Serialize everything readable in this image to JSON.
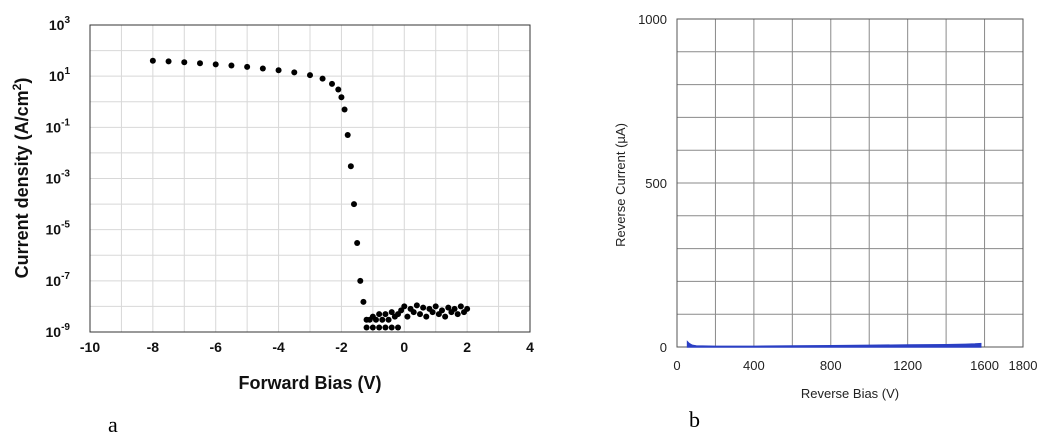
{
  "chart_data": [
    {
      "type": "scatter",
      "panel_label": "a",
      "xlabel": "Forward Bias (V)",
      "ylabel": "Current density (A/cm2)",
      "ylabel_parts": [
        "Current density (A/cm",
        "2",
        ")"
      ],
      "xlim": [
        -10,
        4
      ],
      "ylim": [
        1e-09,
        1000
      ],
      "yscale": "log",
      "grid": true,
      "x_ticks": [
        "-10",
        "-8",
        "-6",
        "-4",
        "-2",
        "0",
        "2",
        "4"
      ],
      "y_ticks": [
        {
          "value": 1000,
          "base": "10",
          "exp": "3"
        },
        {
          "value": 10,
          "base": "10",
          "exp": "1"
        },
        {
          "value": 0.1,
          "base": "10",
          "exp": "-1"
        },
        {
          "value": 0.001,
          "base": "10",
          "exp": "-3"
        },
        {
          "value": 1e-05,
          "base": "10",
          "exp": "-5"
        },
        {
          "value": 1e-07,
          "base": "10",
          "exp": "-7"
        },
        {
          "value": 1e-09,
          "base": "10",
          "exp": "-9"
        }
      ],
      "series": [
        {
          "color": "#000000",
          "points": [
            [
              -8.0,
              40
            ],
            [
              -7.5,
              38
            ],
            [
              -7.0,
              35
            ],
            [
              -6.5,
              32
            ],
            [
              -6.0,
              29
            ],
            [
              -5.5,
              26
            ],
            [
              -5.0,
              23
            ],
            [
              -4.5,
              20
            ],
            [
              -4.0,
              17
            ],
            [
              -3.5,
              14
            ],
            [
              -3.0,
              11
            ],
            [
              -2.6,
              8
            ],
            [
              -2.3,
              5
            ],
            [
              -2.1,
              3
            ],
            [
              -2.0,
              1.5
            ],
            [
              -1.9,
              0.5
            ],
            [
              -1.8,
              0.05
            ],
            [
              -1.7,
              0.003
            ],
            [
              -1.6,
              0.0001
            ],
            [
              -1.5,
              3e-06
            ],
            [
              -1.4,
              1e-07
            ],
            [
              -1.3,
              1.5e-08
            ],
            [
              -1.2,
              3e-09
            ],
            [
              -1.1,
              3e-09
            ],
            [
              -1.0,
              4e-09
            ],
            [
              -0.9,
              3e-09
            ],
            [
              -0.8,
              5e-09
            ],
            [
              -0.7,
              3e-09
            ],
            [
              -0.6,
              5e-09
            ],
            [
              -0.5,
              3e-09
            ],
            [
              -0.4,
              6e-09
            ],
            [
              -0.3,
              4e-09
            ],
            [
              -0.2,
              5e-09
            ],
            [
              -0.1,
              7e-09
            ],
            [
              0.0,
              1e-08
            ],
            [
              0.1,
              4e-09
            ],
            [
              0.2,
              8e-09
            ],
            [
              0.3,
              6e-09
            ],
            [
              0.4,
              1.1e-08
            ],
            [
              0.5,
              5e-09
            ],
            [
              0.6,
              9e-09
            ],
            [
              0.7,
              4e-09
            ],
            [
              0.8,
              8e-09
            ],
            [
              0.9,
              6e-09
            ],
            [
              1.0,
              1e-08
            ],
            [
              1.1,
              5e-09
            ],
            [
              1.2,
              7e-09
            ],
            [
              1.3,
              4e-09
            ],
            [
              1.4,
              9e-09
            ],
            [
              1.5,
              6e-09
            ],
            [
              1.6,
              8e-09
            ],
            [
              1.7,
              5e-09
            ],
            [
              1.8,
              1e-08
            ],
            [
              1.9,
              6e-09
            ],
            [
              2.0,
              8e-09
            ],
            [
              -1.2,
              1.5e-09
            ],
            [
              -1.0,
              1.5e-09
            ],
            [
              -0.8,
              1.5e-09
            ],
            [
              -0.6,
              1.5e-09
            ],
            [
              -0.4,
              1.5e-09
            ],
            [
              -0.2,
              1.5e-09
            ]
          ]
        }
      ]
    },
    {
      "type": "area",
      "panel_label": "b",
      "xlabel": "Reverse Bias (V)",
      "ylabel": "Reverse Current (µA)",
      "xlim": [
        0,
        1800
      ],
      "ylim": [
        0,
        1000
      ],
      "grid": true,
      "x_ticks": [
        "0",
        "400",
        "800",
        "1200",
        "1600",
        "1800"
      ],
      "x_tick_values": [
        0,
        400,
        800,
        1200,
        1600,
        1800
      ],
      "y_ticks": [
        "0",
        "500",
        "1000"
      ],
      "y_tick_values": [
        0,
        500,
        1000
      ],
      "series": [
        {
          "color": "#2a3fc4",
          "points": [
            [
              55,
              15
            ],
            [
              60,
              12
            ],
            [
              70,
              8
            ],
            [
              80,
              5
            ],
            [
              100,
              3
            ],
            [
              200,
              2
            ],
            [
              400,
              2
            ],
            [
              600,
              3
            ],
            [
              800,
              4
            ],
            [
              1000,
              5
            ],
            [
              1200,
              6
            ],
            [
              1400,
              7
            ],
            [
              1500,
              8
            ],
            [
              1550,
              9
            ],
            [
              1580,
              10
            ]
          ]
        }
      ]
    }
  ]
}
